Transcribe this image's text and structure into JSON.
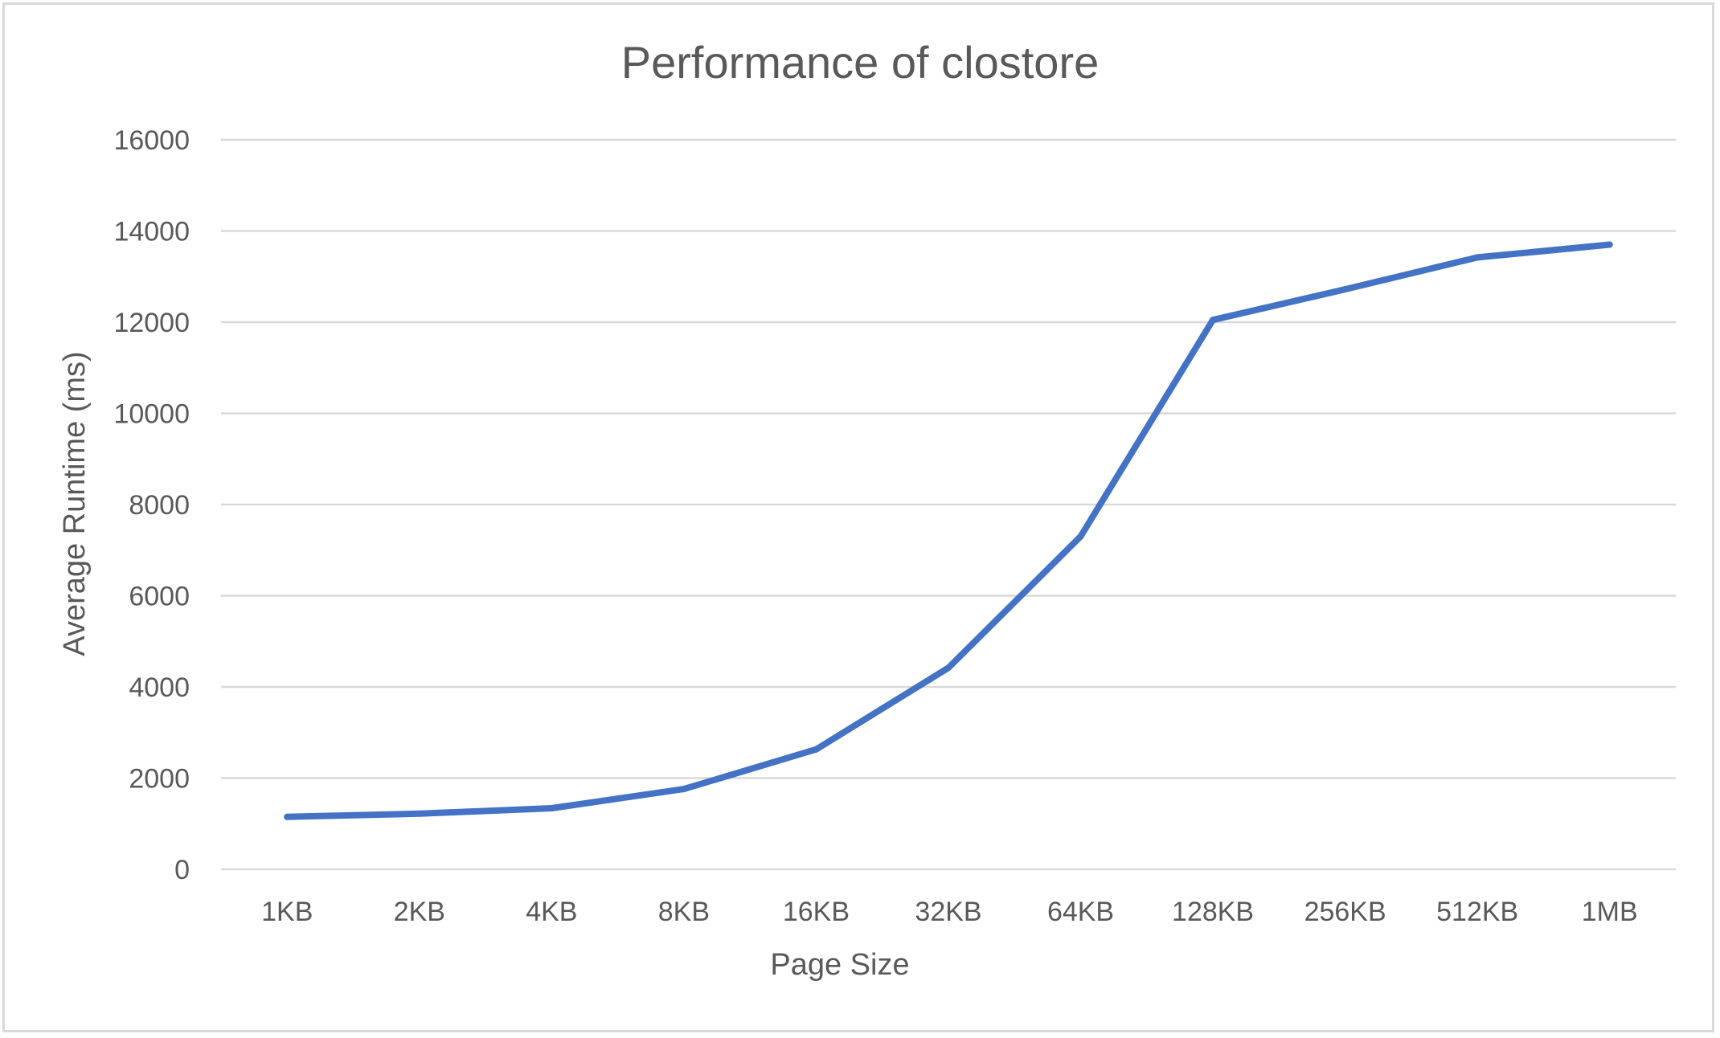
{
  "chart_data": {
    "type": "line",
    "title": "Performance of clostore",
    "xlabel": "Page Size",
    "ylabel": "Average Runtime (ms)",
    "categories": [
      "1KB",
      "2KB",
      "4KB",
      "8KB",
      "16KB",
      "32KB",
      "64KB",
      "128KB",
      "256KB",
      "512KB",
      "1MB"
    ],
    "series": [
      {
        "values": [
          1150,
          1220,
          1340,
          1760,
          2630,
          4420,
          7300,
          12050,
          12720,
          13420,
          13700
        ]
      }
    ],
    "ylim": [
      0,
      16000
    ],
    "yticks": [
      0,
      2000,
      4000,
      6000,
      8000,
      10000,
      12000,
      14000,
      16000
    ],
    "grid": true,
    "legend": "none",
    "colors": {
      "series": "#4472c4",
      "grid": "#d9d9d9",
      "text": "#595959"
    }
  }
}
